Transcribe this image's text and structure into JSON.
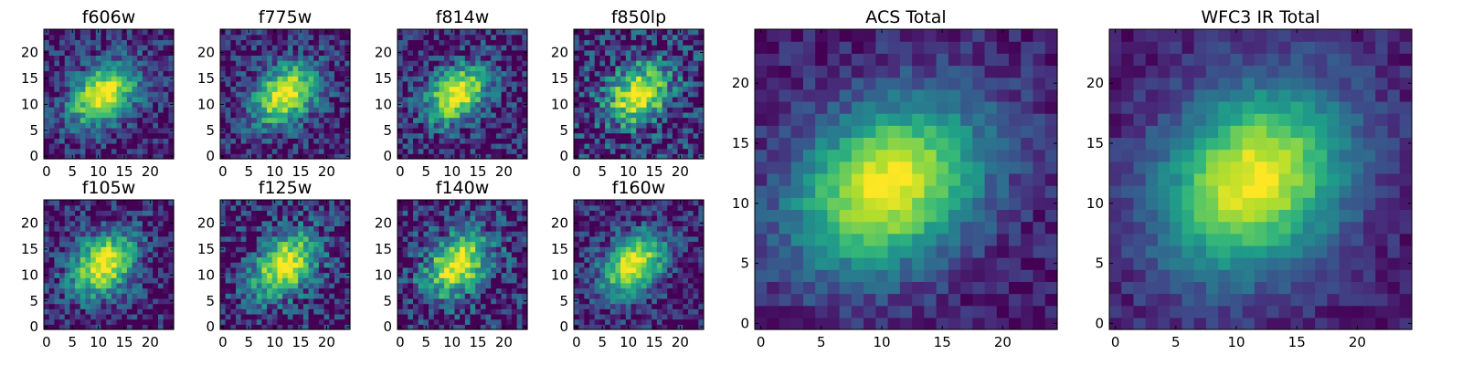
{
  "chart_data": [
    {
      "type": "heatmap",
      "title": "f606w",
      "colormap": "viridis",
      "grid": false,
      "xlim": [
        0,
        24
      ],
      "ylim": [
        0,
        24
      ],
      "x_ticks": [
        "0",
        "5",
        "10",
        "15",
        "20"
      ],
      "y_ticks": [
        "0",
        "5",
        "10",
        "15",
        "20"
      ],
      "source": {
        "center": [
          11,
          12
        ],
        "sigma_major": 5.5,
        "sigma_minor": 3.6,
        "angle_deg": 38,
        "noise": 0.24,
        "seed": 11
      }
    },
    {
      "type": "heatmap",
      "title": "f775w",
      "colormap": "viridis",
      "grid": false,
      "xlim": [
        0,
        24
      ],
      "ylim": [
        0,
        24
      ],
      "x_ticks": [
        "0",
        "5",
        "10",
        "15",
        "20"
      ],
      "y_ticks": [
        "0",
        "5",
        "10",
        "15",
        "20"
      ],
      "source": {
        "center": [
          12,
          12
        ],
        "sigma_major": 5.3,
        "sigma_minor": 3.7,
        "angle_deg": 40,
        "noise": 0.26,
        "seed": 23
      }
    },
    {
      "type": "heatmap",
      "title": "f814w",
      "colormap": "viridis",
      "grid": false,
      "xlim": [
        0,
        24
      ],
      "ylim": [
        0,
        24
      ],
      "x_ticks": [
        "0",
        "5",
        "10",
        "15",
        "20"
      ],
      "y_ticks": [
        "0",
        "5",
        "10",
        "15",
        "20"
      ],
      "source": {
        "center": [
          11,
          12
        ],
        "sigma_major": 5.0,
        "sigma_minor": 3.4,
        "angle_deg": 40,
        "noise": 0.28,
        "seed": 37
      }
    },
    {
      "type": "heatmap",
      "title": "f850lp",
      "colormap": "viridis",
      "grid": false,
      "xlim": [
        0,
        24
      ],
      "ylim": [
        0,
        24
      ],
      "x_ticks": [
        "0",
        "5",
        "10",
        "15",
        "20"
      ],
      "y_ticks": [
        "0",
        "5",
        "10",
        "15",
        "20"
      ],
      "source": {
        "center": [
          12,
          12
        ],
        "sigma_major": 5.0,
        "sigma_minor": 3.8,
        "angle_deg": 40,
        "noise": 0.36,
        "seed": 41
      }
    },
    {
      "type": "heatmap",
      "title": "f105w",
      "colormap": "viridis",
      "grid": false,
      "xlim": [
        0,
        24
      ],
      "ylim": [
        0,
        24
      ],
      "x_ticks": [
        "0",
        "5",
        "10",
        "15",
        "20"
      ],
      "y_ticks": [
        "0",
        "5",
        "10",
        "15",
        "20"
      ],
      "source": {
        "center": [
          11,
          12
        ],
        "sigma_major": 5.2,
        "sigma_minor": 3.8,
        "angle_deg": 45,
        "noise": 0.26,
        "seed": 53
      }
    },
    {
      "type": "heatmap",
      "title": "f125w",
      "colormap": "viridis",
      "grid": false,
      "xlim": [
        0,
        24
      ],
      "ylim": [
        0,
        24
      ],
      "x_ticks": [
        "0",
        "5",
        "10",
        "15",
        "20"
      ],
      "y_ticks": [
        "0",
        "5",
        "10",
        "15",
        "20"
      ],
      "source": {
        "center": [
          12,
          12
        ],
        "sigma_major": 5.4,
        "sigma_minor": 3.7,
        "angle_deg": 45,
        "noise": 0.3,
        "seed": 67
      }
    },
    {
      "type": "heatmap",
      "title": "f140w",
      "colormap": "viridis",
      "grid": false,
      "xlim": [
        0,
        24
      ],
      "ylim": [
        0,
        24
      ],
      "x_ticks": [
        "0",
        "5",
        "10",
        "15",
        "20"
      ],
      "y_ticks": [
        "0",
        "5",
        "10",
        "15",
        "20"
      ],
      "source": {
        "center": [
          11,
          12
        ],
        "sigma_major": 5.3,
        "sigma_minor": 3.7,
        "angle_deg": 45,
        "noise": 0.32,
        "seed": 79
      }
    },
    {
      "type": "heatmap",
      "title": "f160w",
      "colormap": "viridis",
      "grid": false,
      "xlim": [
        0,
        24
      ],
      "ylim": [
        0,
        24
      ],
      "x_ticks": [
        "0",
        "5",
        "10",
        "15",
        "20"
      ],
      "y_ticks": [
        "0",
        "5",
        "10",
        "15",
        "20"
      ],
      "source": {
        "center": [
          11,
          12
        ],
        "sigma_major": 5.0,
        "sigma_minor": 3.6,
        "angle_deg": 45,
        "noise": 0.24,
        "seed": 83
      }
    },
    {
      "type": "heatmap",
      "title": "ACS Total",
      "colormap": "viridis",
      "grid": false,
      "xlim": [
        0,
        24
      ],
      "ylim": [
        0,
        24
      ],
      "x_ticks": [
        "0",
        "5",
        "10",
        "15",
        "20"
      ],
      "y_ticks": [
        "0",
        "5",
        "10",
        "15",
        "20"
      ],
      "source": {
        "center": [
          10.5,
          11.5
        ],
        "sigma_major": 6.0,
        "sigma_minor": 4.4,
        "angle_deg": 35,
        "noise": 0.12,
        "seed": 97
      }
    },
    {
      "type": "heatmap",
      "title": "WFC3 IR Total",
      "colormap": "viridis",
      "grid": false,
      "xlim": [
        0,
        24
      ],
      "ylim": [
        0,
        24
      ],
      "x_ticks": [
        "0",
        "5",
        "10",
        "15",
        "20"
      ],
      "y_ticks": [
        "0",
        "5",
        "10",
        "15",
        "20"
      ],
      "source": {
        "center": [
          11.5,
          12
        ],
        "sigma_major": 6.0,
        "sigma_minor": 4.8,
        "angle_deg": 45,
        "noise": 0.1,
        "seed": 101
      }
    }
  ]
}
